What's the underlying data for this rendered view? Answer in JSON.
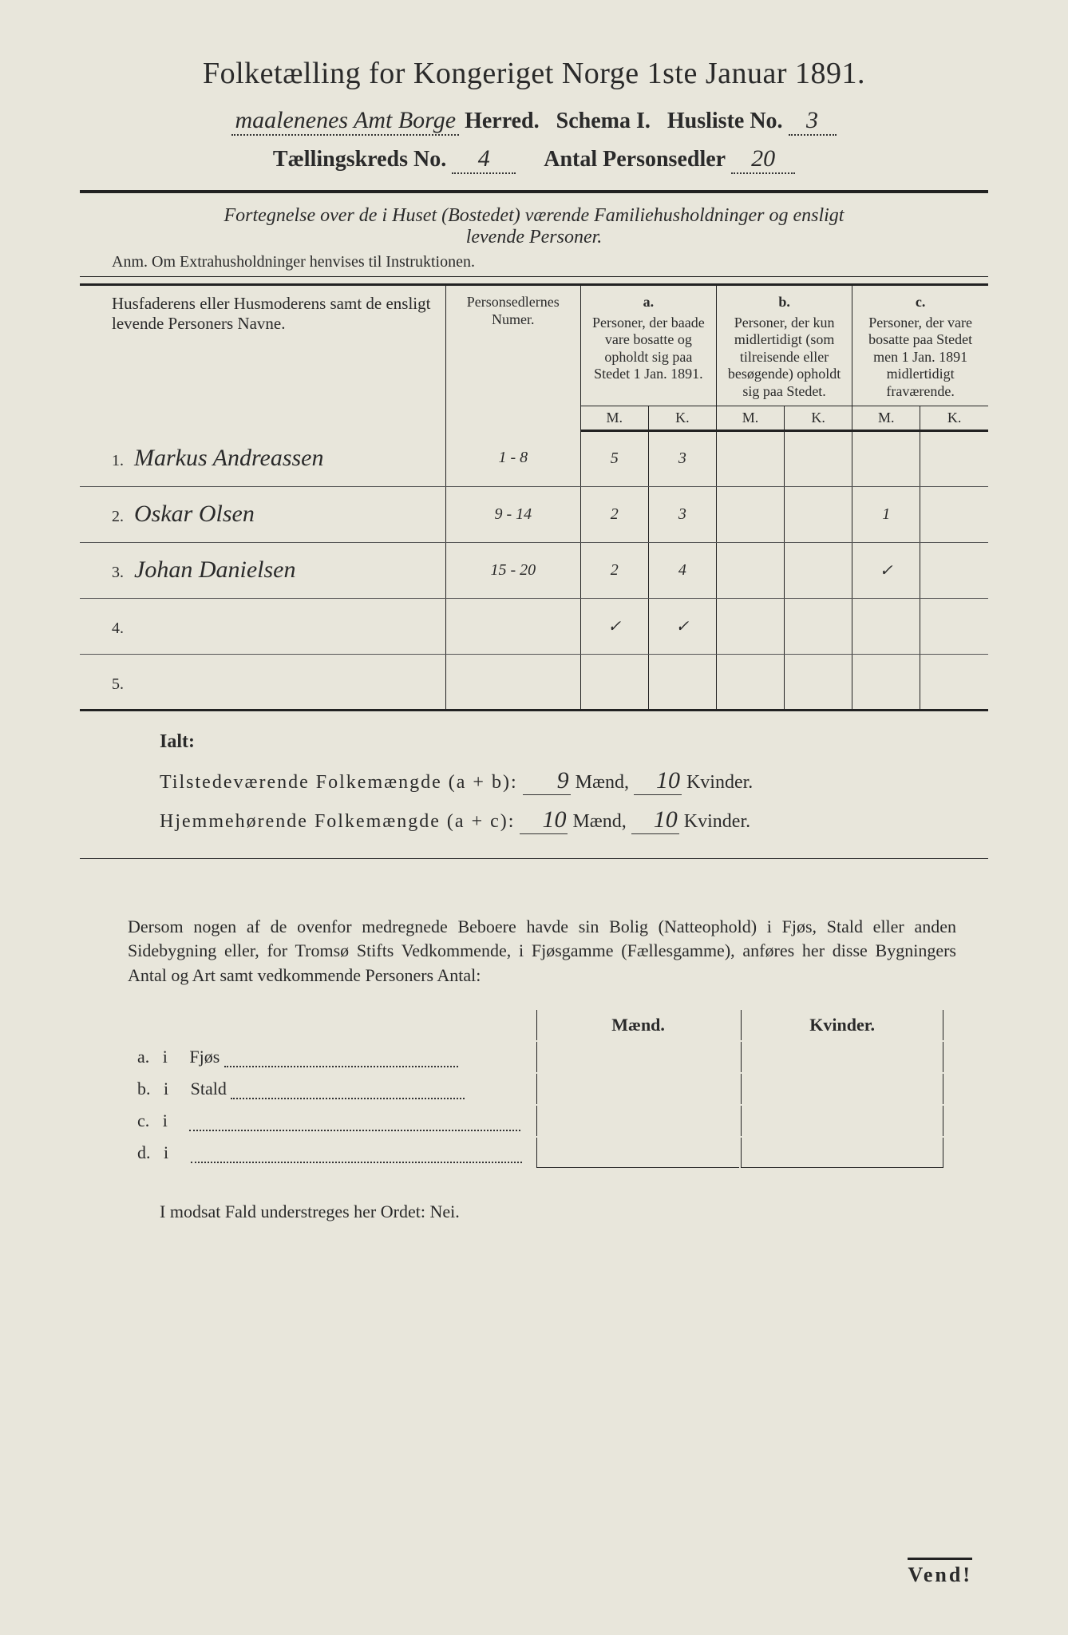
{
  "header": {
    "title": "Folketælling for Kongeriget Norge 1ste Januar 1891.",
    "amt_herred": "maalenenes Amt Borge",
    "herred_label": "Herred.",
    "schema_label": "Schema I.",
    "husliste_label": "Husliste No.",
    "husliste_no": "3",
    "kreds_label": "Tællingskreds No.",
    "kreds_no": "4",
    "antal_label": "Antal Personsedler",
    "antal_no": "20"
  },
  "fortegnelse": {
    "line1": "Fortegnelse over de i Huset (Bostedet) værende Familiehusholdninger og ensligt",
    "line2": "levende Personer.",
    "anm": "Anm. Om Extrahusholdninger henvises til Instruktionen."
  },
  "table": {
    "head_name": "Husfaderens eller Husmoderens samt de ensligt levende Personers Navne.",
    "head_num": "Personsedlernes Numer.",
    "head_a": "a.",
    "head_a_text": "Personer, der baade vare bosatte og opholdt sig paa Stedet 1 Jan. 1891.",
    "head_b": "b.",
    "head_b_text": "Personer, der kun midlertidigt (som tilreisende eller besøgende) opholdt sig paa Stedet.",
    "head_c": "c.",
    "head_c_text": "Personer, der vare bosatte paa Stedet men 1 Jan. 1891 midlertidigt fraværende.",
    "m": "M.",
    "k": "K.",
    "rows": [
      {
        "num": "1.",
        "name": "Markus Andreassen",
        "psedler": "1 - 8",
        "am": "5",
        "ak": "3",
        "bm": "",
        "bk": "",
        "cm": "",
        "ck": ""
      },
      {
        "num": "2.",
        "name": "Oskar Olsen",
        "psedler": "9 - 14",
        "am": "2",
        "ak": "3",
        "bm": "",
        "bk": "",
        "cm": "1",
        "ck": ""
      },
      {
        "num": "3.",
        "name": "Johan Danielsen",
        "psedler": "15 - 20",
        "am": "2",
        "ak": "4",
        "bm": "",
        "bk": "",
        "cm": "✓",
        "ck": ""
      },
      {
        "num": "4.",
        "name": "",
        "psedler": "",
        "am": "✓",
        "ak": "✓",
        "bm": "",
        "bk": "",
        "cm": "",
        "ck": ""
      },
      {
        "num": "5.",
        "name": "",
        "psedler": "",
        "am": "",
        "ak": "",
        "bm": "",
        "bk": "",
        "cm": "",
        "ck": ""
      }
    ]
  },
  "ialt": {
    "label": "Ialt:",
    "line1_label": "Tilstedeværende Folkemængde (a + b):",
    "line1_m": "9",
    "line1_k": "10",
    "line2_label": "Hjemmehørende Folkemængde (a + c):",
    "line2_m": "10",
    "line2_k": "10",
    "maend": "Mænd,",
    "kvinder": "Kvinder."
  },
  "dersom": {
    "text": "Dersom nogen af de ovenfor medregnede Beboere havde sin Bolig (Natteophold) i Fjøs, Stald eller anden Sidebygning eller, for Tromsø Stifts Vedkommende, i Fjøsgamme (Fællesgamme), anføres her disse Bygningers Antal og Art samt vedkommende Personers Antal:"
  },
  "bolig": {
    "maend": "Mænd.",
    "kvinder": "Kvinder.",
    "rows": [
      {
        "label": "a.",
        "i": "i",
        "type": "Fjøs"
      },
      {
        "label": "b.",
        "i": "i",
        "type": "Stald"
      },
      {
        "label": "c.",
        "i": "i",
        "type": ""
      },
      {
        "label": "d.",
        "i": "i",
        "type": ""
      }
    ]
  },
  "modsat": "I modsat Fald understreges her Ordet: Nei.",
  "vend": "Vend!"
}
